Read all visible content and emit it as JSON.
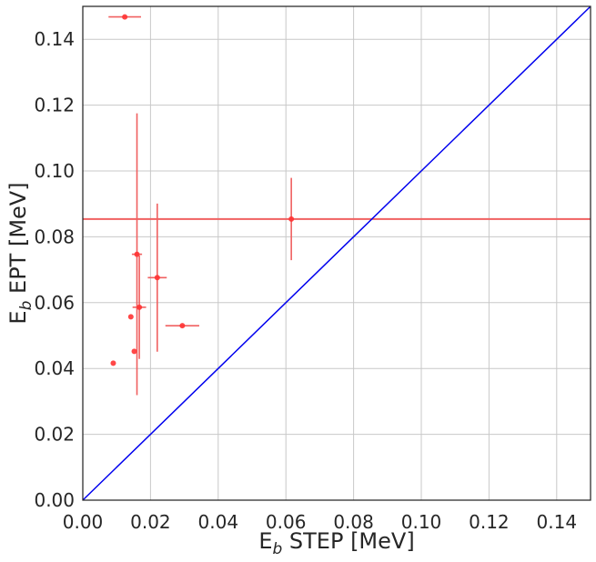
{
  "chart_data": {
    "type": "scatter",
    "title": "",
    "xlabel": {
      "main": "E",
      "sub": "b",
      "rest": " STEP [MeV]"
    },
    "ylabel": {
      "main": "E",
      "sub": "b",
      "rest": " EPT [MeV]"
    },
    "xlim": [
      0,
      0.15
    ],
    "ylim": [
      0,
      0.15
    ],
    "xticks": [
      "0.00",
      "0.02",
      "0.04",
      "0.06",
      "0.08",
      "0.10",
      "0.12",
      "0.14"
    ],
    "yticks": [
      "0.00",
      "0.02",
      "0.04",
      "0.06",
      "0.08",
      "0.10",
      "0.12",
      "0.14"
    ],
    "grid": true,
    "colors": {
      "points": "#ff3333",
      "errorbars": "#f06060",
      "identity": "#0000ee",
      "hline": "#f06060",
      "grid": "#c8c8c8",
      "frame": "#262626"
    },
    "identity_line": {
      "from": [
        0,
        0
      ],
      "to": [
        0.15,
        0.15
      ]
    },
    "hline": {
      "y": 0.0854
    },
    "points": [
      {
        "x": 0.0124,
        "y": 0.1468,
        "xerr": 0.0048,
        "yerr": 0
      },
      {
        "x": 0.0616,
        "y": 0.0854,
        "xerr": 0,
        "yerr": 0.0125
      },
      {
        "x": 0.016,
        "y": 0.0747,
        "xerr": 0.0015,
        "yerr": 0.0428
      },
      {
        "x": 0.022,
        "y": 0.0676,
        "xerr": 0.0028,
        "yerr": 0.0225
      },
      {
        "x": 0.0167,
        "y": 0.0586,
        "xerr": 0.002,
        "yerr": 0.0157
      },
      {
        "x": 0.0142,
        "y": 0.0557,
        "xerr": 0,
        "yerr": 0
      },
      {
        "x": 0.0294,
        "y": 0.053,
        "xerr": 0.005,
        "yerr": 0
      },
      {
        "x": 0.0152,
        "y": 0.0452,
        "xerr": 0,
        "yerr": 0
      },
      {
        "x": 0.009,
        "y": 0.0416,
        "xerr": 0,
        "yerr": 0
      }
    ]
  }
}
